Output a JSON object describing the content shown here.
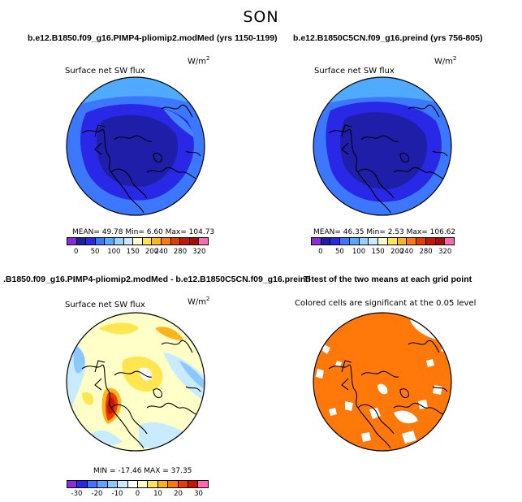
{
  "figure": {
    "super_title": "SON"
  },
  "panels": [
    {
      "id": "top-left",
      "title": "b.e12.B1850.f09_g16.PIMP4-pliomip2.modMed (yrs 1150-1199)",
      "variable": "Surface net SW flux",
      "units": "W/m",
      "units_exp": "2",
      "stats_text": "MEAN=  49.78  Min=    6.60  Max= 104.73",
      "colorbar": {
        "colors": [
          "#8a2be2",
          "#1e1ea8",
          "#2828e6",
          "#3c78ff",
          "#50aaff",
          "#96d2ff",
          "#c8ebff",
          "#ffffc8",
          "#ffe650",
          "#ffb41e",
          "#ff780a",
          "#e63c00",
          "#c81400",
          "#aa0a0a",
          "#ff69b4"
        ],
        "tick_labels": [
          "0",
          "50",
          "100",
          "150",
          "200",
          "240",
          "280",
          "320"
        ]
      }
    },
    {
      "id": "top-right",
      "title": "b.e12.B1850C5CN.f09_g16.preind (yrs 756-805)",
      "variable": "Surface net SW flux",
      "units": "W/m",
      "units_exp": "2",
      "stats_text": "MEAN=  46.35  Min=    2.53  Max= 106.62",
      "colorbar": {
        "colors": [
          "#8a2be2",
          "#1e1ea8",
          "#2828e6",
          "#3c78ff",
          "#50aaff",
          "#96d2ff",
          "#c8ebff",
          "#ffffc8",
          "#ffe650",
          "#ffb41e",
          "#ff780a",
          "#e63c00",
          "#c81400",
          "#aa0a0a",
          "#ff69b4"
        ],
        "tick_labels": [
          "0",
          "50",
          "100",
          "150",
          "200",
          "240",
          "280",
          "320"
        ]
      }
    },
    {
      "id": "bottom-left",
      "title": ".B1850.f09_g16.PIMP4-pliomip2.modMed - b.e12.B1850C5CN.f09_g16.preind",
      "variable": "Surface net SW flux",
      "units": "W/m",
      "units_exp": "2",
      "stats_text": "MIN =  -17.46  MAX =   37.35",
      "colorbar": {
        "colors": [
          "#8a2be2",
          "#2828e6",
          "#3c78ff",
          "#64a0ff",
          "#8cc8ff",
          "#c8ebff",
          "#ffffff",
          "#ffffc8",
          "#ffe650",
          "#ffb41e",
          "#ff780a",
          "#e63c00",
          "#c81400",
          "#ff69b4"
        ],
        "tick_labels": [
          "-30",
          "-20",
          "-10",
          "0",
          "10",
          "20",
          "30"
        ]
      }
    },
    {
      "id": "bottom-right",
      "title": "T-test of the two means at each grid point",
      "note": "Colored cells are significant at the 0.05 level"
    }
  ]
}
